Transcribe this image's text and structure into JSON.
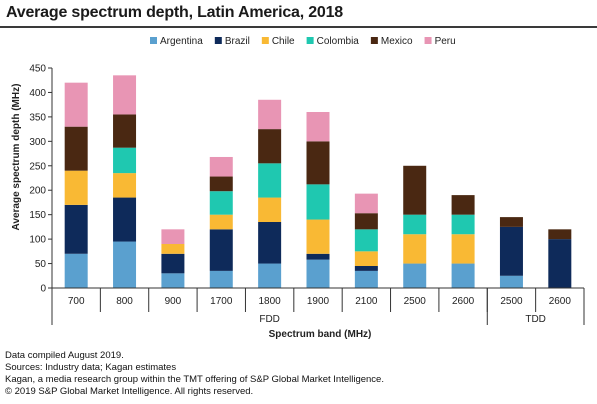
{
  "title": "Average spectrum depth, Latin America, 2018",
  "footer": {
    "line1": "Data compiled August 2019.",
    "line2": "Sources: Industry data; Kagan estimates",
    "line3": "Kagan, a media research group within the TMT offering of S&P Global Market Intelligence.",
    "line4": "© 2019 S&P Global Market Intelligence. All rights reserved."
  },
  "chart_data": {
    "type": "bar",
    "stacked": true,
    "title": "Average spectrum depth, Latin America, 2018",
    "xlabel": "Spectrum band (MHz)",
    "ylabel": "Average spectrum depth (MHz)",
    "ylim": [
      0,
      450
    ],
    "yticks": [
      0,
      50,
      100,
      150,
      200,
      250,
      300,
      350,
      400,
      450
    ],
    "legend_position": "top",
    "grid": false,
    "categories": [
      "700",
      "800",
      "900",
      "1700",
      "1800",
      "1900",
      "2100",
      "2500",
      "2600",
      "2500",
      "2600"
    ],
    "groups": [
      {
        "label": "FDD",
        "categories": [
          "700",
          "800",
          "900",
          "1700",
          "1800",
          "1900",
          "2100",
          "2500",
          "2600"
        ]
      },
      {
        "label": "TDD",
        "categories": [
          "2500",
          "2600"
        ]
      }
    ],
    "series": [
      {
        "name": "Argentina",
        "color": "#5aa0cf",
        "values": [
          70,
          95,
          30,
          35,
          50,
          58,
          35,
          50,
          50,
          25,
          0
        ]
      },
      {
        "name": "Brazil",
        "color": "#0e2a5a",
        "values": [
          100,
          90,
          40,
          85,
          85,
          12,
          10,
          0,
          0,
          100,
          100
        ]
      },
      {
        "name": "Chile",
        "color": "#f9b934",
        "values": [
          70,
          50,
          20,
          30,
          50,
          70,
          30,
          60,
          60,
          0,
          0
        ]
      },
      {
        "name": "Colombia",
        "color": "#1fc8b0",
        "values": [
          0,
          52,
          0,
          48,
          70,
          72,
          45,
          40,
          40,
          0,
          0
        ]
      },
      {
        "name": "Mexico",
        "color": "#4a2812",
        "values": [
          90,
          68,
          0,
          30,
          70,
          88,
          33,
          100,
          40,
          20,
          20
        ]
      },
      {
        "name": "Peru",
        "color": "#e895b4",
        "values": [
          90,
          80,
          30,
          40,
          60,
          60,
          40,
          0,
          0,
          0,
          0
        ]
      }
    ]
  }
}
